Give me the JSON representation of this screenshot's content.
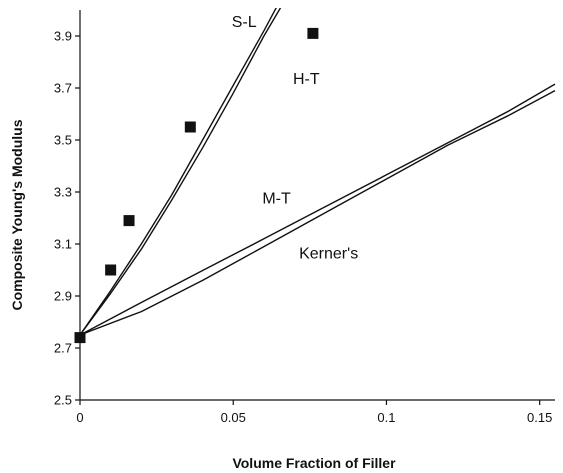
{
  "chart_data": {
    "type": "scatter",
    "title": "",
    "xlabel": "Volume Fraction of Filler",
    "ylabel": "Composite Young's Modulus",
    "xlim": [
      0,
      0.155
    ],
    "ylim": [
      2.5,
      4.0
    ],
    "x_ticks": [
      0,
      0.05,
      0.1,
      0.15
    ],
    "x_tick_labels": [
      "0",
      "0.05",
      "0.1",
      "0.15"
    ],
    "y_ticks": [
      2.5,
      2.7,
      2.9,
      3.1,
      3.3,
      3.5,
      3.7,
      3.9
    ],
    "y_tick_labels": [
      "2.5",
      "2.7",
      "2.9",
      "3.1",
      "3.3",
      "3.5",
      "3.7",
      "3.9"
    ],
    "grid": false,
    "legend": "none",
    "series": [
      {
        "kind": "scatter",
        "marker": "square",
        "x": [
          0,
          0.01,
          0.016,
          0.036,
          0.076
        ],
        "y": [
          2.74,
          3.0,
          3.19,
          3.55,
          3.91
        ]
      },
      {
        "name": "S-L",
        "kind": "line",
        "x": [
          0,
          0.01,
          0.02,
          0.03,
          0.04,
          0.05,
          0.06,
          0.065
        ],
        "y": [
          2.75,
          2.92,
          3.1,
          3.29,
          3.5,
          3.71,
          3.92,
          4.03
        ]
      },
      {
        "name": "H-T",
        "kind": "line",
        "x": [
          0,
          0.01,
          0.02,
          0.03,
          0.04,
          0.05,
          0.06,
          0.0665
        ],
        "y": [
          2.75,
          2.91,
          3.08,
          3.27,
          3.47,
          3.68,
          3.9,
          4.03
        ]
      },
      {
        "name": "M-T",
        "kind": "line",
        "x": [
          0,
          0.02,
          0.04,
          0.06,
          0.08,
          0.1,
          0.12,
          0.14,
          0.155
        ],
        "y": [
          2.75,
          2.875,
          2.998,
          3.12,
          3.243,
          3.366,
          3.489,
          3.612,
          3.715
        ]
      },
      {
        "name": "Kerner's",
        "kind": "line",
        "x": [
          0,
          0.02,
          0.04,
          0.06,
          0.08,
          0.1,
          0.12,
          0.14,
          0.155
        ],
        "y": [
          2.75,
          2.84,
          2.96,
          3.09,
          3.22,
          3.35,
          3.48,
          3.595,
          3.69
        ]
      }
    ],
    "annotations": [
      {
        "text": "S-L",
        "x": 0.0495,
        "y": 3.935
      },
      {
        "text": "H-T",
        "x": 0.0695,
        "y": 3.715
      },
      {
        "text": "M-T",
        "x": 0.0595,
        "y": 3.255
      },
      {
        "text": "Kerner's",
        "x": 0.0715,
        "y": 3.045
      }
    ]
  }
}
